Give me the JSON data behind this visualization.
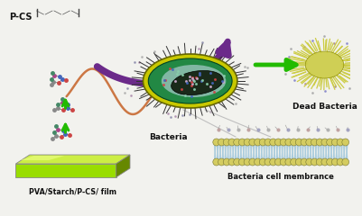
{
  "bg_color": "#f2f2ee",
  "labels": {
    "pcs": "P-CS",
    "film": "PVA/Starch/P-CS/ film",
    "bacteria": "Bacteria",
    "dead_bacteria": "Dead Bacteria",
    "membrane": "Bacteria cell membrance"
  },
  "colors": {
    "purple_arrow": "#6B2A8A",
    "green_arrow": "#22BB00",
    "bacteria_yellow": "#C8C800",
    "bacteria_yellow2": "#AAAA00",
    "bacteria_green": "#228844",
    "bacteria_inner_bg": "#AACCCC",
    "bacteria_black_inner": "#223322",
    "film_top": "#CCEE44",
    "film_front": "#99DD00",
    "film_right": "#668800",
    "film_shine": "#EEFF88",
    "membrane_head": "#D4CC60",
    "membrane_tail_light": "#AACCDD",
    "dead_color": "#CCCC44",
    "flagellum": "#CC7744",
    "mol_blue": "#4466BB",
    "mol_red": "#CC4444",
    "mol_grey": "#888888",
    "mol_teal": "#448866",
    "line_grey": "#C0C0C0"
  }
}
